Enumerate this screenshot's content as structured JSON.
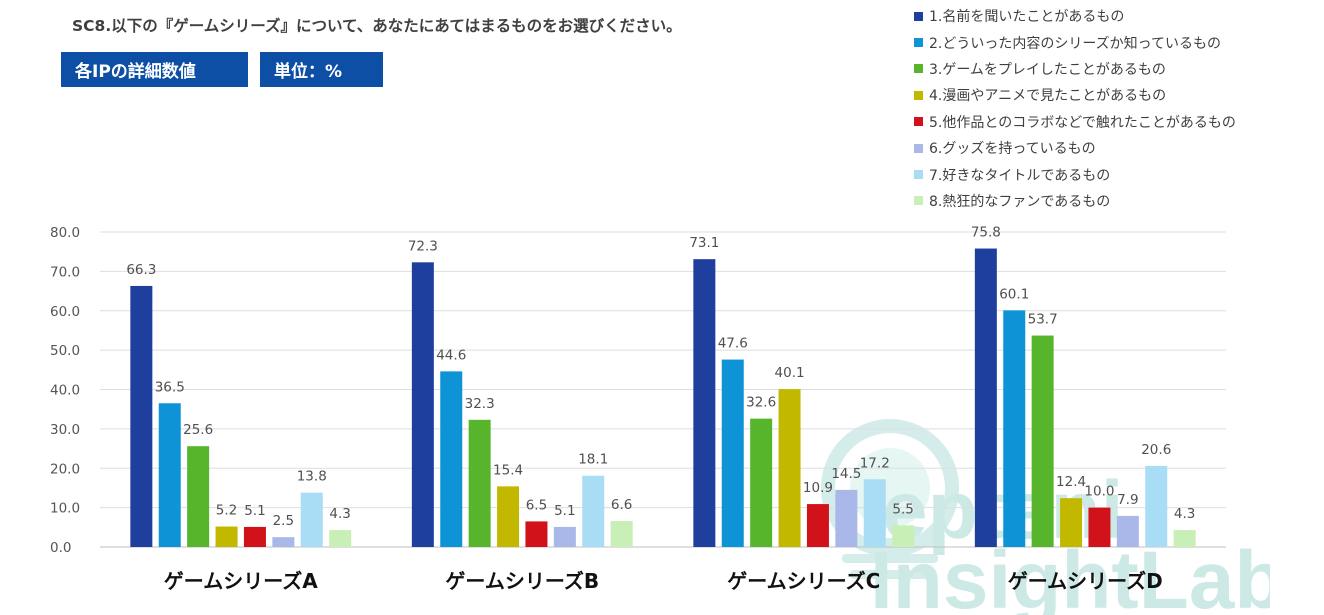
{
  "question": "SC8.以下の『ゲームシリーズ』について、あなたにあてはまるものをお選びください。",
  "badges": {
    "ip_detail": "各IPの詳細数値",
    "unit": "単位：%"
  },
  "watermark_text": "Septeni Insight Lab.",
  "colors": [
    "#1f3f9e",
    "#0d93d6",
    "#56b52a",
    "#c3b800",
    "#d2121b",
    "#a9b8e9",
    "#a9dcf5",
    "#c8efb6"
  ],
  "chart_data": {
    "type": "bar",
    "title": "",
    "xlabel": "",
    "ylabel": "",
    "ylim": [
      0,
      80
    ],
    "yticks": [
      "0.0",
      "10.0",
      "20.0",
      "30.0",
      "40.0",
      "50.0",
      "60.0",
      "70.0",
      "80.0"
    ],
    "categories": [
      "ゲームシリーズA",
      "ゲームシリーズB",
      "ゲームシリーズC",
      "ゲームシリーズD"
    ],
    "legend_position": "top-right",
    "grid": true,
    "series": [
      {
        "name": "1.名前を聞いたことがあるもの",
        "values": [
          66.3,
          72.3,
          73.1,
          75.8
        ],
        "labels": [
          "66.3",
          "72.3",
          "73.1",
          "75.8"
        ]
      },
      {
        "name": "2.どういった内容のシリーズか知っているもの",
        "values": [
          36.5,
          44.6,
          47.6,
          60.1
        ],
        "labels": [
          "36.5",
          "44.6",
          "47.6",
          "60.1"
        ]
      },
      {
        "name": "3.ゲームをプレイしたことがあるもの",
        "values": [
          25.6,
          32.3,
          32.6,
          53.7
        ],
        "labels": [
          "25.6",
          "32.3",
          "32.6",
          "53.7"
        ]
      },
      {
        "name": "4.漫画やアニメで見たことがあるもの",
        "values": [
          5.2,
          15.4,
          40.1,
          12.4
        ],
        "labels": [
          "5.2",
          "15.4",
          "40.1",
          "12.4"
        ]
      },
      {
        "name": "5.他作品とのコラボなどで触れたことがあるもの",
        "values": [
          5.1,
          6.5,
          10.9,
          10.0
        ],
        "labels": [
          "5.1",
          "6.5",
          "10.9",
          "10.0"
        ]
      },
      {
        "name": "6.グッズを持っているもの",
        "values": [
          2.5,
          5.1,
          14.5,
          7.9
        ],
        "labels": [
          "2.5",
          "5.1",
          "14.5",
          "7.9"
        ]
      },
      {
        "name": "7.好きなタイトルであるもの",
        "values": [
          13.8,
          18.1,
          17.2,
          20.6
        ],
        "labels": [
          "13.8",
          "18.1",
          "17.2",
          "20.6"
        ]
      },
      {
        "name": "8.熱狂的なファンであるもの",
        "values": [
          4.3,
          6.6,
          5.5,
          4.3
        ],
        "labels": [
          "4.3",
          "6.6",
          "5.5",
          "4.3"
        ]
      }
    ]
  }
}
